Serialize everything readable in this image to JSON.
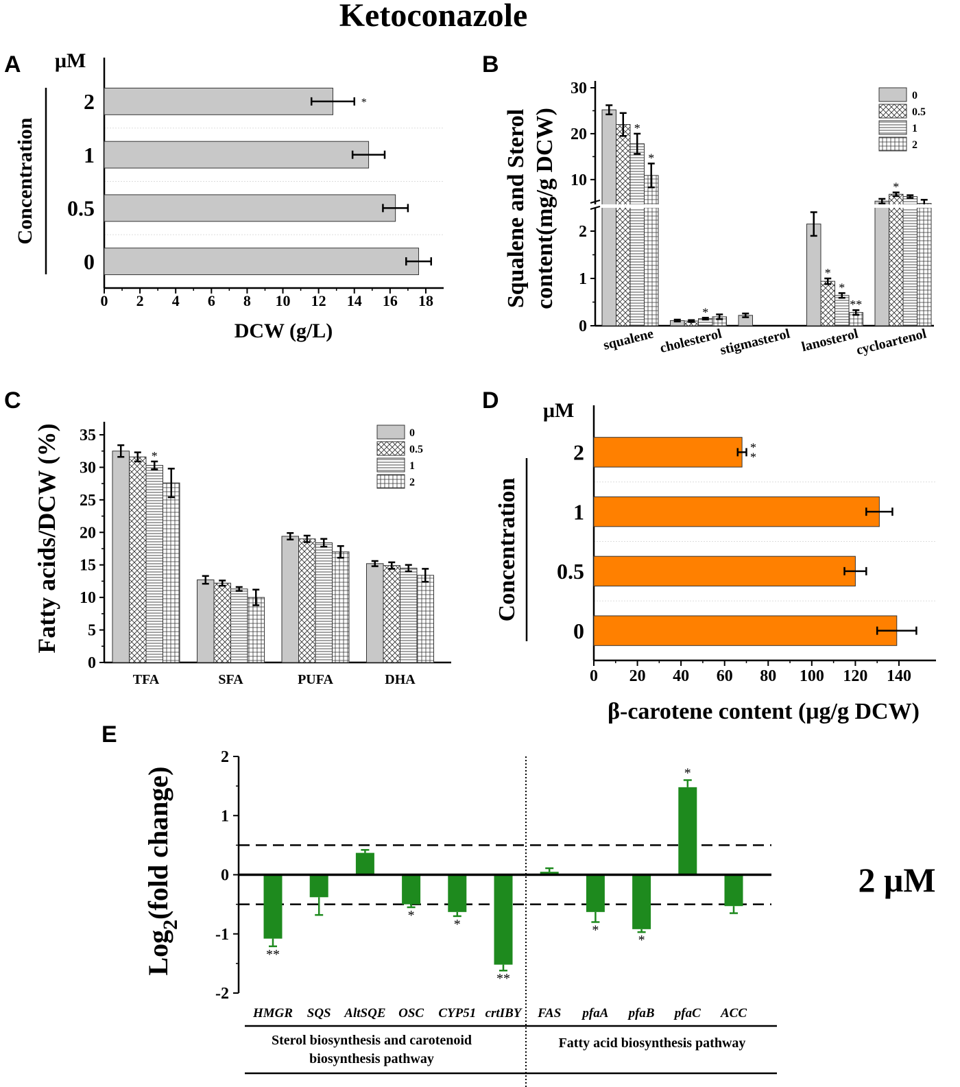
{
  "figure": {
    "title": "Ketoconazole"
  },
  "chart_data": [
    {
      "panel": "A",
      "type": "bar",
      "orientation": "horizontal",
      "title": "",
      "unit_label": "μM",
      "ylabel": "Concentration",
      "xlabel": "DCW (g/L)",
      "categories": [
        "2",
        "1",
        "0.5",
        "0"
      ],
      "values": [
        12.8,
        14.8,
        16.3,
        17.6
      ],
      "errors": [
        1.2,
        0.9,
        0.7,
        0.7
      ],
      "significance": [
        "*",
        "",
        "",
        ""
      ],
      "xlim": [
        0,
        19
      ],
      "xticks": [
        0,
        2,
        4,
        6,
        8,
        10,
        12,
        14,
        16,
        18
      ],
      "color": "#c8c8c8"
    },
    {
      "panel": "B",
      "type": "bar",
      "ylabel": "Squalene and Sterol content(mg/g DCW)",
      "categories": [
        "squalene",
        "cholesterol",
        "stigmasterol",
        "lanosterol",
        "cycloartenol"
      ],
      "legend": [
        "0",
        "0.5",
        "1",
        "2"
      ],
      "series": [
        {
          "name": "0",
          "values": [
            25.2,
            0.11,
            0.22,
            2.15,
            5.3
          ],
          "errors": [
            1.0,
            0.02,
            0.04,
            0.25,
            0.5
          ]
        },
        {
          "name": "0.5",
          "values": [
            22.0,
            0.1,
            0,
            0.94,
            6.8
          ],
          "errors": [
            2.5,
            0.02,
            0,
            0.06,
            0.4
          ]
        },
        {
          "name": "1",
          "values": [
            17.8,
            0.15,
            0,
            0.64,
            6.3
          ],
          "errors": [
            2.2,
            0.02,
            0,
            0.05,
            0.3
          ]
        },
        {
          "name": "2",
          "values": [
            10.9,
            0.19,
            0,
            0.28,
            4.8
          ],
          "errors": [
            2.6,
            0.05,
            0,
            0.05,
            0.8
          ]
        }
      ],
      "significance": [
        [
          "",
          "",
          "*",
          "*"
        ],
        [
          "",
          "",
          "*",
          ""
        ],
        [
          "",
          "",
          "",
          ""
        ],
        [
          "",
          "*",
          "*",
          "**"
        ],
        [
          "",
          "*",
          "",
          ""
        ]
      ],
      "yticks_lower": [
        0,
        1,
        2
      ],
      "yticks_upper": [
        10,
        20,
        30
      ],
      "ylim_lower": [
        0,
        2.5
      ],
      "ylim_upper": [
        4,
        30
      ]
    },
    {
      "panel": "C",
      "type": "bar",
      "ylabel": "Fatty acids/DCW (%)",
      "categories": [
        "TFA",
        "SFA",
        "PUFA",
        "DHA"
      ],
      "legend": [
        "0",
        "0.5",
        "1",
        "2"
      ],
      "series": [
        {
          "name": "0",
          "values": [
            32.5,
            12.7,
            19.4,
            15.2
          ],
          "errors": [
            0.9,
            0.6,
            0.5,
            0.4
          ]
        },
        {
          "name": "0.5",
          "values": [
            31.6,
            12.2,
            19.0,
            14.9
          ],
          "errors": [
            0.7,
            0.4,
            0.5,
            0.5
          ]
        },
        {
          "name": "1",
          "values": [
            30.3,
            11.3,
            18.4,
            14.5
          ],
          "errors": [
            0.6,
            0.3,
            0.6,
            0.5
          ]
        },
        {
          "name": "2",
          "values": [
            27.6,
            10.0,
            17.0,
            13.4
          ],
          "errors": [
            2.2,
            1.2,
            0.9,
            1.0
          ]
        }
      ],
      "significance": [
        [
          "",
          "",
          "*",
          ""
        ],
        [
          "",
          "",
          "",
          ""
        ],
        [
          "",
          "",
          "",
          ""
        ],
        [
          "",
          "",
          "",
          ""
        ]
      ],
      "ylim": [
        0,
        37
      ],
      "yticks": [
        0,
        5,
        10,
        15,
        20,
        25,
        30,
        35
      ]
    },
    {
      "panel": "D",
      "type": "bar",
      "orientation": "horizontal",
      "unit_label": "μM",
      "ylabel": "Concentration",
      "xlabel": "β-carotene content (μg/g DCW)",
      "categories": [
        "2",
        "1",
        "0.5",
        "0"
      ],
      "values": [
        68,
        131,
        120,
        139
      ],
      "errors": [
        2,
        6,
        5,
        9
      ],
      "significance": [
        "**",
        "",
        "",
        ""
      ],
      "xlim": [
        0,
        157
      ],
      "xticks": [
        0,
        20,
        40,
        60,
        80,
        100,
        120,
        140
      ],
      "color": "#ff8000"
    },
    {
      "panel": "E",
      "type": "bar",
      "ylabel": "Log2(fold change)",
      "ylabel_main": "Log",
      "ylabel_sub": "2",
      "ylabel_rest": "(fold change)",
      "annotation": "2 μM",
      "categories": [
        "HMGR",
        "SQS",
        "AltSQE",
        "OSC",
        "CYP51",
        "crtIBY",
        "FAS",
        "pfaA",
        "pfaB",
        "pfaC",
        "ACC"
      ],
      "values": [
        -1.08,
        -0.38,
        0.37,
        -0.5,
        -0.63,
        -1.52,
        0.05,
        -0.63,
        -0.92,
        1.48,
        -0.53
      ],
      "errors": [
        0.13,
        0.3,
        0.05,
        0.05,
        0.07,
        0.1,
        0.06,
        0.17,
        0.05,
        0.12,
        0.12
      ],
      "significance": [
        "**",
        "",
        "",
        "*",
        "*",
        "**",
        "",
        "*",
        "*",
        "*",
        ""
      ],
      "ylim": [
        -2,
        2
      ],
      "yticks": [
        -2,
        -1,
        0,
        1,
        2
      ],
      "thresholds": [
        0.5,
        -0.5
      ],
      "groups": [
        {
          "label_line1": "Sterol biosynthesis and carotenoid",
          "label_line2": "biosynthesis pathway"
        },
        {
          "label_line1": "Fatty acid biosynthesis pathway",
          "label_line2": ""
        }
      ],
      "color": "#1e8a1e"
    }
  ],
  "panel_labels": [
    "A",
    "B",
    "C",
    "D",
    "E"
  ]
}
